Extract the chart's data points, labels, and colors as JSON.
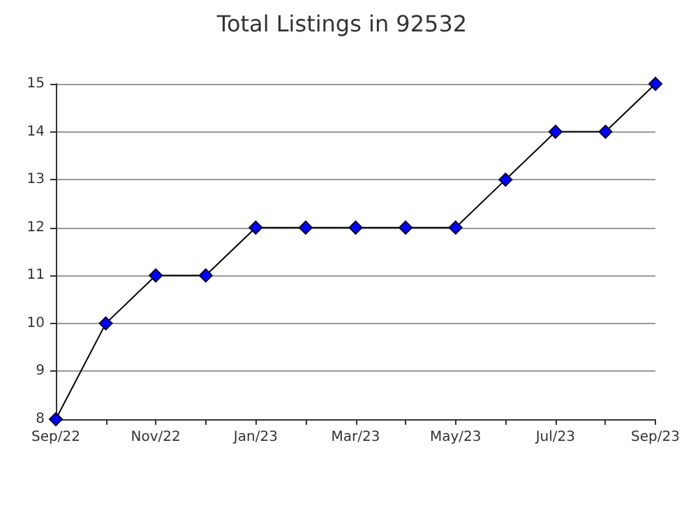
{
  "chart_data": {
    "type": "line",
    "title": "Total Listings in 92532",
    "categories": [
      "Sep/22",
      null,
      "Nov/22",
      null,
      "Jan/23",
      null,
      "Mar/23",
      null,
      "May/23",
      null,
      "Jul/23",
      null,
      "Sep/23"
    ],
    "series": [
      {
        "color": "#0000ff",
        "values": [
          8,
          10,
          11,
          11,
          12,
          12,
          12,
          12,
          12,
          13,
          14,
          14,
          15
        ]
      }
    ],
    "ylim": [
      8,
      15
    ],
    "yticks": [
      8,
      9,
      10,
      11,
      12,
      13,
      14,
      15
    ],
    "grid": "y",
    "marker": "diamond",
    "line_style": "solid"
  }
}
